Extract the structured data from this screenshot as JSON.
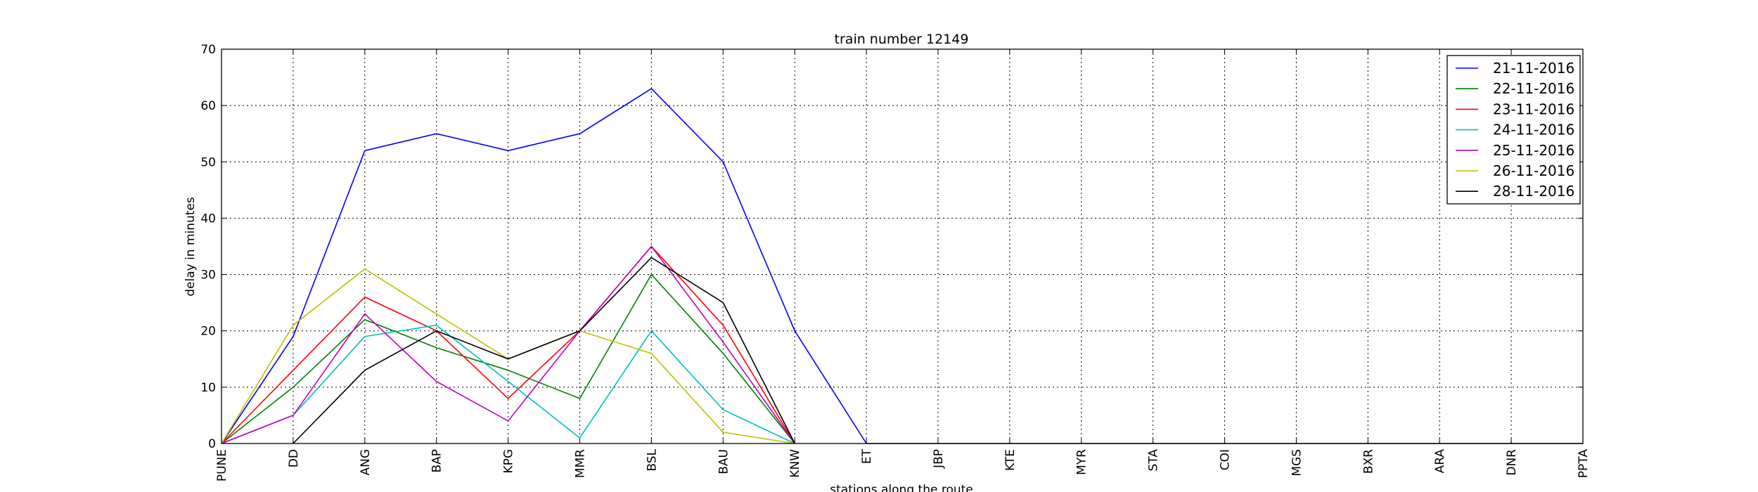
{
  "chart_data": {
    "type": "line",
    "title": "train number 12149",
    "xlabel": "stations along the route",
    "ylabel": "delay in minutes",
    "categories": [
      "PUNE",
      "DD",
      "ANG",
      "BAP",
      "KPG",
      "MMR",
      "BSL",
      "BAU",
      "KNW",
      "ET",
      "JBP",
      "KTE",
      "MYR",
      "STA",
      "COI",
      "MGS",
      "BXR",
      "ARA",
      "DNR",
      "PPTA"
    ],
    "ylim": [
      0,
      70
    ],
    "yticks": [
      0,
      10,
      20,
      30,
      40,
      50,
      60,
      70
    ],
    "grid": true,
    "legend_position": "top-right",
    "series": [
      {
        "name": "21-11-2016",
        "color": "#0000ff",
        "values": [
          0,
          19,
          52,
          55,
          52,
          55,
          63,
          50,
          20,
          0,
          0,
          0,
          0,
          0,
          0,
          0,
          0,
          0,
          0,
          0
        ]
      },
      {
        "name": "22-11-2016",
        "color": "#008000",
        "values": [
          0,
          10,
          22,
          17,
          13,
          8,
          30,
          16,
          0,
          null,
          null,
          null,
          null,
          null,
          null,
          null,
          null,
          null,
          null,
          null
        ]
      },
      {
        "name": "23-11-2016",
        "color": "#ff0000",
        "values": [
          0,
          13,
          26,
          20,
          8,
          20,
          35,
          21,
          0,
          null,
          null,
          null,
          null,
          null,
          null,
          null,
          null,
          null,
          null,
          null
        ]
      },
      {
        "name": "24-11-2016",
        "color": "#00bfbf",
        "values": [
          0,
          5,
          19,
          21,
          11,
          1,
          20,
          6,
          0,
          null,
          null,
          null,
          null,
          null,
          null,
          null,
          null,
          null,
          null,
          null
        ]
      },
      {
        "name": "25-11-2016",
        "color": "#bf00bf",
        "values": [
          0,
          5,
          23,
          11,
          4,
          20,
          35,
          18,
          0,
          null,
          null,
          null,
          null,
          null,
          null,
          null,
          null,
          null,
          null,
          null
        ]
      },
      {
        "name": "26-11-2016",
        "color": "#bfbf00",
        "values": [
          0,
          21,
          31,
          23,
          15,
          20,
          16,
          2,
          0,
          null,
          null,
          null,
          null,
          null,
          null,
          null,
          null,
          null,
          null,
          null
        ]
      },
      {
        "name": "28-11-2016",
        "color": "#000000",
        "values": [
          null,
          0,
          13,
          20,
          15,
          20,
          33,
          25,
          0,
          null,
          null,
          null,
          null,
          null,
          null,
          null,
          null,
          null,
          null,
          null
        ]
      }
    ]
  }
}
